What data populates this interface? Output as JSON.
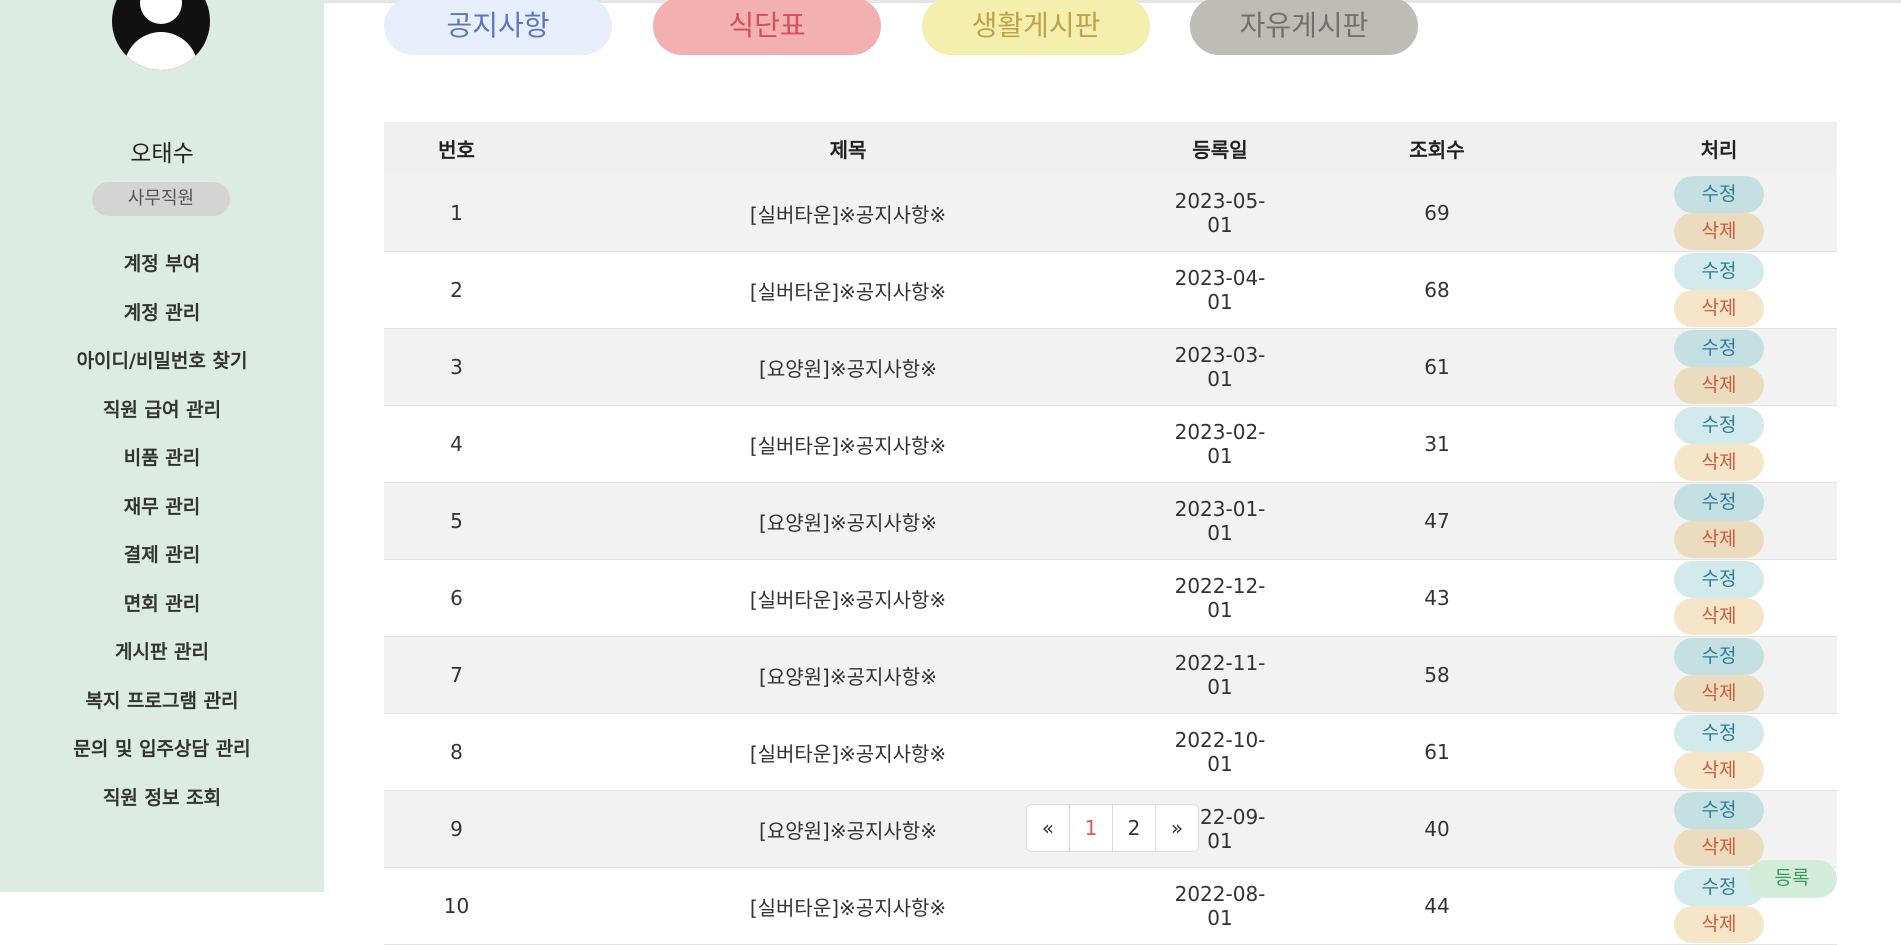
{
  "colors": {
    "sidebar_bg": "#dcebe3",
    "tab_notice_bg": "#e7eefc",
    "tab_notice_text": "#5b74c4",
    "tab_menu_bg": "#f2b0b0",
    "tab_menu_text": "#d64f57",
    "tab_life_bg": "#f4efad",
    "tab_life_text": "#c0a24a",
    "tab_free_bg": "#bdbdb5",
    "tab_free_text": "#707070",
    "accent_current_page": "#e45a4a"
  },
  "sidebar": {
    "avatar_icon": "user-avatar-icon",
    "user_name": "오태수",
    "user_role": "사무직원",
    "menu": [
      {
        "label": "계정 부여"
      },
      {
        "label": "계정 관리"
      },
      {
        "label": "아이디/비밀번호 찾기"
      },
      {
        "label": "직원 급여 관리"
      },
      {
        "label": "비품 관리"
      },
      {
        "label": "재무 관리"
      },
      {
        "label": "결제 관리"
      },
      {
        "label": "면회 관리"
      },
      {
        "label": "게시판 관리"
      },
      {
        "label": "복지 프로그램 관리"
      },
      {
        "label": "문의 및 입주상담 관리"
      },
      {
        "label": "직원 정보 조회"
      }
    ]
  },
  "tabs": [
    {
      "label": "공지사항"
    },
    {
      "label": "식단표"
    },
    {
      "label": "생활게시판"
    },
    {
      "label": "자유게시판"
    }
  ],
  "table": {
    "headers": [
      "번호",
      "제목",
      "등록일",
      "조회수",
      "처리"
    ],
    "edit_label": "수정",
    "delete_label": "삭제",
    "rows": [
      {
        "no": "1",
        "title": "[실버타운]※공지사항※",
        "date": "2023-05-01",
        "views": "69"
      },
      {
        "no": "2",
        "title": "[실버타운]※공지사항※",
        "date": "2023-04-01",
        "views": "68"
      },
      {
        "no": "3",
        "title": "[요양원]※공지사항※",
        "date": "2023-03-01",
        "views": "61"
      },
      {
        "no": "4",
        "title": "[실버타운]※공지사항※",
        "date": "2023-02-01",
        "views": "31"
      },
      {
        "no": "5",
        "title": "[요양원]※공지사항※",
        "date": "2023-01-01",
        "views": "47"
      },
      {
        "no": "6",
        "title": "[실버타운]※공지사항※",
        "date": "2022-12-01",
        "views": "43"
      },
      {
        "no": "7",
        "title": "[요양원]※공지사항※",
        "date": "2022-11-01",
        "views": "58"
      },
      {
        "no": "8",
        "title": "[실버타운]※공지사항※",
        "date": "2022-10-01",
        "views": "61"
      },
      {
        "no": "9",
        "title": "[요양원]※공지사항※",
        "date": "2022-09-01",
        "views": "40"
      },
      {
        "no": "10",
        "title": "[실버타운]※공지사항※",
        "date": "2022-08-01",
        "views": "44"
      }
    ]
  },
  "pagination": {
    "prev": "«",
    "pages": [
      "1",
      "2"
    ],
    "current": "1",
    "next": "»"
  },
  "register_label": "등록"
}
